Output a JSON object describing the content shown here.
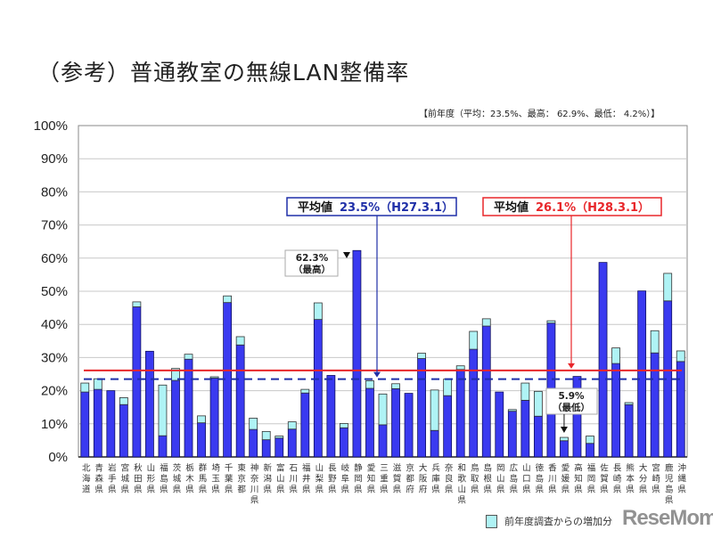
{
  "title": "（参考）普通教室の無線LAN整備率",
  "prev_year_note": "【前年度（平均：23.5%、最高： 62.9%、最低： 4.2%）】",
  "legend_label": "前年度調査からの増加分",
  "watermark": "ReseMom",
  "colors": {
    "bar": "#3a3af0",
    "increase": "#aff3f5",
    "avg_current": "#e8262a",
    "avg_prev": "#1f2fa8"
  },
  "chart_data": {
    "type": "bar",
    "stacked": true,
    "ylim": [
      0,
      100
    ],
    "yticks": [
      "0%",
      "10%",
      "20%",
      "30%",
      "40%",
      "50%",
      "60%",
      "70%",
      "80%",
      "90%",
      "100%"
    ],
    "grid": true,
    "legend_position": "bottom-right",
    "categories": [
      "北海道",
      "青森県",
      "岩手県",
      "宮城県",
      "秋田県",
      "山形県",
      "福島県",
      "茨城県",
      "栃木県",
      "群馬県",
      "埼玉県",
      "千葉県",
      "東京都",
      "神奈川県",
      "新潟県",
      "富山県",
      "石川県",
      "福井県",
      "山梨県",
      "長野県",
      "岐阜県",
      "静岡県",
      "愛知県",
      "三重県",
      "滋賀県",
      "京都府",
      "大阪府",
      "兵庫県",
      "奈良県",
      "和歌山県",
      "鳥取県",
      "島根県",
      "岡山県",
      "広島県",
      "山口県",
      "徳島県",
      "香川県",
      "愛媛県",
      "高知県",
      "福岡県",
      "佐賀県",
      "長崎県",
      "熊本県",
      "大分県",
      "宮崎県",
      "鹿児島県",
      "沖縄県"
    ],
    "series": [
      {
        "name": "",
        "values": [
          19.6,
          20.4,
          20.0,
          15.8,
          45.3,
          31.9,
          6.4,
          23.1,
          29.5,
          10.3,
          23.8,
          46.6,
          33.8,
          8.3,
          5.2,
          5.7,
          8.4,
          19.3,
          41.5,
          24.6,
          8.8,
          62.3,
          20.7,
          9.7,
          20.6,
          19.2,
          29.7,
          8.0,
          18.5,
          26.4,
          32.5,
          39.5,
          19.6,
          13.8,
          17.1,
          12.3,
          40.4,
          4.9,
          24.3,
          4.1,
          58.7,
          28.2,
          15.8,
          50.1,
          31.4,
          47.1,
          28.8
        ]
      },
      {
        "name": "前年度調査からの増加分",
        "values": [
          2.7,
          3.2,
          0.0,
          2.1,
          1.5,
          0.0,
          15.3,
          3.6,
          1.5,
          2.1,
          0.4,
          2.0,
          2.5,
          3.4,
          2.5,
          0.6,
          2.2,
          1.1,
          5.0,
          0.0,
          1.3,
          0.0,
          2.3,
          9.3,
          1.5,
          0.0,
          1.6,
          12.2,
          5.0,
          1.1,
          5.4,
          2.2,
          0.0,
          0.5,
          5.2,
          7.5,
          0.7,
          1.0,
          0.0,
          2.2,
          0.0,
          4.7,
          0.6,
          0.0,
          6.7,
          8.3,
          3.2
        ]
      }
    ],
    "reference_lines": [
      {
        "label": "平均値",
        "value": 23.5,
        "value_text": "23.5%（H27.3.1）",
        "style": "dashed"
      },
      {
        "label": "平均値",
        "value": 26.1,
        "value_text": "26.1%（H28.3.1）",
        "style": "solid"
      }
    ],
    "annotations": [
      {
        "category": "静岡県",
        "text": "62.3%",
        "sub": "（最高）"
      },
      {
        "category": "愛媛県",
        "text": "5.9%",
        "sub": "（最低）"
      }
    ]
  }
}
